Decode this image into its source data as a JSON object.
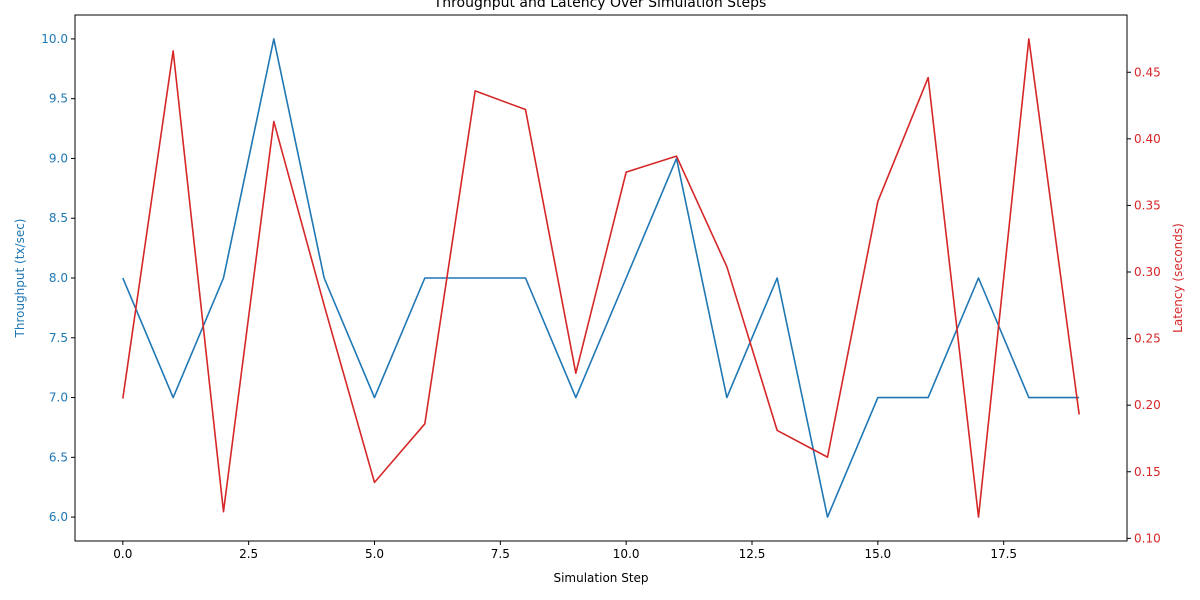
{
  "chart_data": {
    "type": "line",
    "title": "Throughput and Latency Over Simulation Steps",
    "xlabel": "Simulation Step",
    "x": [
      0,
      1,
      2,
      3,
      4,
      5,
      6,
      7,
      8,
      9,
      10,
      11,
      12,
      13,
      14,
      15,
      16,
      17,
      18,
      19
    ],
    "xlim": [
      -0.95,
      19.95
    ],
    "xticks": [
      "0.0",
      "2.5",
      "5.0",
      "7.5",
      "10.0",
      "12.5",
      "15.0",
      "17.5"
    ],
    "grid": false,
    "series": [
      {
        "name": "Throughput",
        "axis": "left",
        "color": "#1f77b4",
        "values": [
          8,
          7,
          8,
          10,
          8,
          7,
          8,
          8,
          8,
          7,
          8,
          9,
          7,
          8,
          6,
          7,
          7,
          8,
          7,
          7
        ]
      },
      {
        "name": "Latency",
        "axis": "right",
        "color": "#d62728",
        "values": [
          0.205,
          0.466,
          0.12,
          0.413,
          0.275,
          0.142,
          0.186,
          0.436,
          0.422,
          0.224,
          0.375,
          0.387,
          0.304,
          0.181,
          0.161,
          0.353,
          0.446,
          0.116,
          0.475,
          0.193
        ]
      }
    ],
    "y_left": {
      "label": "Throughput (tx/sec)",
      "color": "#1f77b4",
      "ylim": [
        5.8,
        10.2
      ],
      "ticks": [
        "6.0",
        "6.5",
        "7.0",
        "7.5",
        "8.0",
        "8.5",
        "9.0",
        "9.5",
        "10.0"
      ]
    },
    "y_right": {
      "label": "Latency (seconds)",
      "color": "#d62728",
      "ylim": [
        0.098,
        0.493
      ],
      "ticks": [
        "0.10",
        "0.15",
        "0.20",
        "0.25",
        "0.30",
        "0.35",
        "0.40",
        "0.45"
      ]
    }
  }
}
